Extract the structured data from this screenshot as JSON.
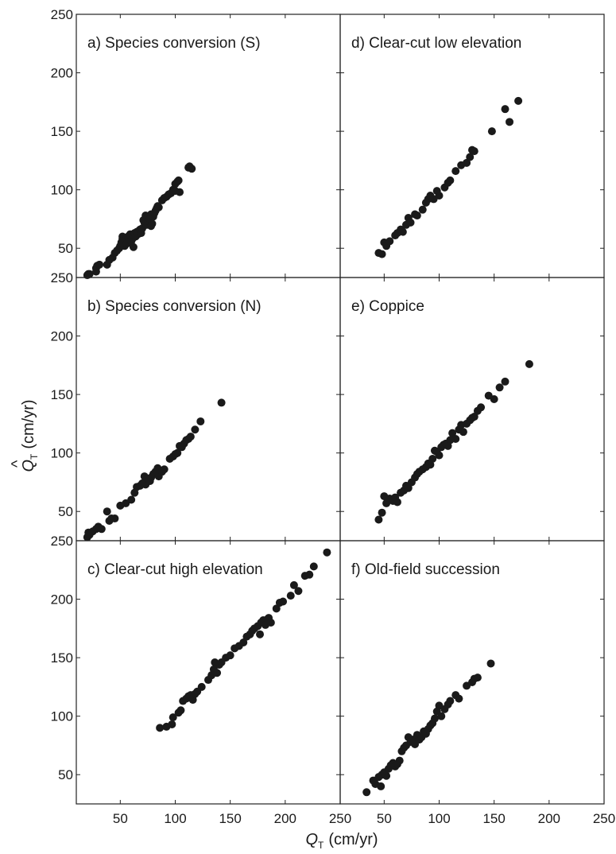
{
  "chart_data": [
    {
      "type": "scatter",
      "panel": "a",
      "title": "a) Species conversion (S)",
      "xlim": [
        10,
        250
      ],
      "ylim": [
        25,
        250
      ],
      "x": [
        20,
        21,
        22,
        28,
        28,
        29,
        31,
        38,
        40,
        43,
        45,
        47,
        49,
        50,
        51,
        52,
        52,
        54,
        55,
        56,
        57,
        58,
        58,
        59,
        60,
        61,
        62,
        62,
        63,
        64,
        65,
        66,
        67,
        68,
        69,
        70,
        71,
        72,
        73,
        74,
        75,
        76,
        77,
        78,
        78,
        79,
        80,
        81,
        82,
        83,
        84,
        85,
        88,
        90,
        92,
        94,
        96,
        98,
        100,
        100,
        102,
        103,
        104,
        112,
        113,
        115
      ],
      "y": [
        27,
        28,
        28,
        30,
        33,
        35,
        36,
        36,
        40,
        42,
        46,
        48,
        50,
        52,
        55,
        58,
        60,
        52,
        57,
        54,
        60,
        59,
        55,
        62,
        56,
        58,
        61,
        51,
        63,
        60,
        64,
        62,
        65,
        66,
        63,
        67,
        74,
        72,
        78,
        70,
        76,
        73,
        75,
        79,
        69,
        71,
        77,
        80,
        82,
        84,
        86,
        85,
        91,
        93,
        94,
        96,
        97,
        100,
        99,
        105,
        107,
        108,
        98,
        119,
        120,
        118
      ]
    },
    {
      "type": "scatter",
      "panel": "b",
      "title": "b) Species conversion (N)",
      "xlim": [
        10,
        250
      ],
      "ylim": [
        25,
        250
      ],
      "x": [
        20,
        21,
        22,
        25,
        28,
        30,
        33,
        38,
        40,
        42,
        45,
        50,
        55,
        60,
        63,
        65,
        68,
        70,
        72,
        73,
        75,
        77,
        78,
        80,
        82,
        84,
        85,
        88,
        90,
        95,
        98,
        100,
        102,
        104,
        106,
        108,
        110,
        112,
        114,
        118,
        123,
        142
      ],
      "y": [
        28,
        32,
        30,
        33,
        35,
        37,
        35,
        50,
        42,
        44,
        44,
        55,
        57,
        60,
        66,
        71,
        72,
        74,
        80,
        73,
        78,
        76,
        79,
        82,
        84,
        87,
        80,
        84,
        86,
        95,
        97,
        99,
        100,
        106,
        105,
        108,
        111,
        112,
        114,
        120,
        127,
        143
      ]
    },
    {
      "type": "scatter",
      "panel": "c",
      "title": "c) Clear-cut high elevation",
      "xlim": [
        10,
        250
      ],
      "ylim": [
        25,
        250
      ],
      "x": [
        86,
        92,
        97,
        98,
        103,
        105,
        107,
        110,
        112,
        114,
        116,
        118,
        120,
        124,
        130,
        133,
        135,
        136,
        138,
        140,
        142,
        146,
        150,
        154,
        158,
        162,
        165,
        168,
        170,
        172,
        175,
        177,
        178,
        180,
        182,
        184,
        185,
        187,
        192,
        195,
        198,
        205,
        208,
        212,
        218,
        222,
        226,
        238
      ],
      "y": [
        90,
        91,
        93,
        99,
        103,
        105,
        113,
        115,
        117,
        118,
        114,
        119,
        121,
        125,
        131,
        135,
        140,
        146,
        137,
        144,
        146,
        150,
        152,
        158,
        160,
        163,
        168,
        170,
        173,
        175,
        177,
        170,
        180,
        182,
        178,
        183,
        184,
        180,
        192,
        197,
        198,
        203,
        212,
        207,
        220,
        221,
        228,
        240
      ]
    },
    {
      "type": "scatter",
      "panel": "d",
      "title": "d) Clear-cut low elevation",
      "xlim": [
        10,
        250
      ],
      "ylim": [
        25,
        250
      ],
      "x": [
        45,
        48,
        50,
        52,
        55,
        60,
        62,
        65,
        67,
        70,
        72,
        74,
        78,
        80,
        85,
        88,
        90,
        92,
        95,
        98,
        100,
        105,
        108,
        110,
        115,
        120,
        125,
        128,
        130,
        132,
        148,
        160,
        164,
        172
      ],
      "y": [
        46,
        45,
        55,
        52,
        56,
        61,
        63,
        66,
        64,
        70,
        76,
        72,
        79,
        78,
        83,
        89,
        92,
        95,
        92,
        99,
        95,
        102,
        106,
        108,
        116,
        121,
        123,
        128,
        134,
        133,
        150,
        169,
        158,
        176
      ]
    },
    {
      "type": "scatter",
      "panel": "e",
      "title": "e) Coppice",
      "xlim": [
        10,
        250
      ],
      "ylim": [
        25,
        250
      ],
      "x": [
        45,
        48,
        50,
        52,
        55,
        58,
        60,
        62,
        65,
        68,
        70,
        72,
        75,
        78,
        80,
        82,
        85,
        88,
        90,
        92,
        94,
        96,
        98,
        100,
        102,
        104,
        106,
        108,
        110,
        112,
        115,
        118,
        120,
        122,
        125,
        128,
        130,
        132,
        135,
        138,
        145,
        150,
        155,
        160,
        182
      ],
      "y": [
        43,
        49,
        63,
        57,
        61,
        59,
        62,
        58,
        66,
        68,
        72,
        70,
        75,
        79,
        82,
        84,
        86,
        88,
        91,
        90,
        95,
        102,
        101,
        98,
        105,
        107,
        108,
        106,
        111,
        117,
        112,
        120,
        124,
        118,
        125,
        128,
        130,
        131,
        136,
        139,
        149,
        146,
        156,
        161,
        176
      ]
    },
    {
      "type": "scatter",
      "panel": "f",
      "title": "f) Old-field succession",
      "xlim": [
        10,
        250
      ],
      "ylim": [
        25,
        250
      ],
      "x": [
        34,
        40,
        42,
        45,
        47,
        48,
        50,
        52,
        54,
        56,
        58,
        60,
        62,
        64,
        66,
        68,
        70,
        72,
        74,
        76,
        78,
        80,
        82,
        84,
        86,
        88,
        90,
        92,
        94,
        96,
        98,
        100,
        102,
        105,
        108,
        110,
        115,
        118,
        125,
        130,
        132,
        135,
        147
      ],
      "y": [
        35,
        45,
        42,
        48,
        40,
        50,
        52,
        49,
        55,
        58,
        60,
        57,
        59,
        62,
        70,
        73,
        75,
        82,
        78,
        80,
        76,
        84,
        80,
        82,
        87,
        85,
        89,
        92,
        94,
        98,
        104,
        109,
        100,
        106,
        110,
        113,
        118,
        115,
        126,
        129,
        132,
        133,
        145
      ]
    }
  ],
  "x_ticks": [
    "50",
    "100",
    "150",
    "200",
    "250"
  ],
  "y_ticks": [
    "50",
    "100",
    "150",
    "200",
    "250"
  ],
  "xlabel": {
    "symbol": "Q",
    "sub": "T",
    "units": "(cm/yr)"
  },
  "ylabel": {
    "hat": "^",
    "symbol": "Q",
    "sub": "T",
    "units": "(cm/yr)"
  }
}
